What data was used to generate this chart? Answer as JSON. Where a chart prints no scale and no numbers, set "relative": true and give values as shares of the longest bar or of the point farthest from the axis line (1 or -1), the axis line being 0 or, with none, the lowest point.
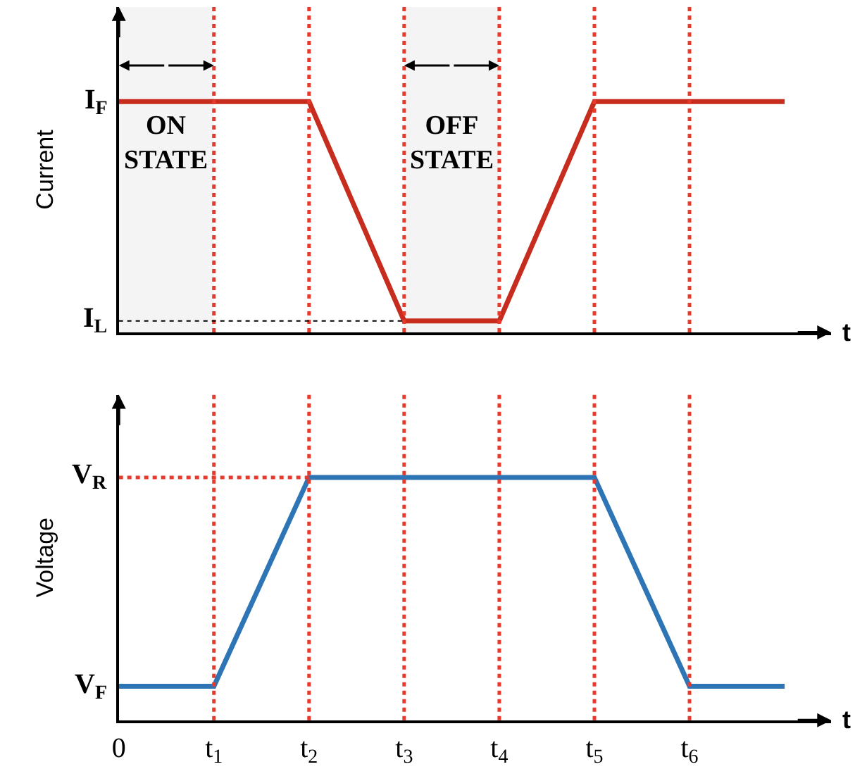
{
  "chart_data": [
    {
      "type": "line",
      "ylabel": "Current",
      "xlabel": "t",
      "relative": true,
      "categories": [
        "0",
        "t$_{1}$",
        "t$_{2}$",
        "t$_{3}$",
        "t$_{4}$",
        "t$_{5}$",
        "t$_{6}$",
        null
      ],
      "tick_labels": false,
      "grid": false,
      "legend": false,
      "line_style": "solid",
      "marker": "none",
      "series": [
        {
          "color": "#c62d1f",
          "values": [
            1,
            1,
            1,
            0.05,
            0.05,
            1,
            1,
            1
          ]
        }
      ],
      "ref_lines": [
        {
          "axis": "x",
          "value": "t$_{1}$",
          "color": "#e8392b",
          "line_style": "dotted"
        },
        {
          "axis": "x",
          "value": "t$_{2}$",
          "color": "#e8392b",
          "line_style": "dotted"
        },
        {
          "axis": "x",
          "value": "t$_{3}$",
          "color": "#e8392b",
          "line_style": "dotted"
        },
        {
          "axis": "x",
          "value": "t$_{4}$",
          "color": "#e8392b",
          "line_style": "dotted"
        },
        {
          "axis": "x",
          "value": "t$_{5}$",
          "color": "#e8392b",
          "line_style": "dotted"
        },
        {
          "axis": "x",
          "value": "t$_{6}$",
          "color": "#e8392b",
          "line_style": "dotted"
        },
        {
          "axis": "y",
          "value": 0.05,
          "label": "I$_{L}$",
          "color": "#000000",
          "line_style": "dotted"
        }
      ],
      "bands": [
        {
          "axis": "x",
          "from": "0",
          "to": "t$_{1}$",
          "label": "ON\nSTATE",
          "color": "#f4f4f4"
        },
        {
          "axis": "x",
          "from": "t$_{3}$",
          "to": "t$_{4}$",
          "label": "OFF\nSTATE",
          "color": "#f4f4f4"
        }
      ],
      "annotations": [
        {
          "text": "I$_{F}$",
          "x": "0",
          "y": 1
        }
      ]
    },
    {
      "type": "line",
      "ylabel": "Voltage",
      "xlabel": "t",
      "relative": true,
      "categories": [
        "0",
        "t$_{1}$",
        "t$_{2}$",
        "t$_{3}$",
        "t$_{4}$",
        "t$_{5}$",
        "t$_{6}$",
        null
      ],
      "tick_labels": "x",
      "grid": false,
      "legend": false,
      "line_style": "solid",
      "marker": "none",
      "series": [
        {
          "color": "#2e75b6",
          "values": [
            0.14,
            0.14,
            1,
            1,
            1,
            1,
            0.14,
            0.14
          ]
        }
      ],
      "ref_lines": [
        {
          "axis": "x",
          "value": "t$_{1}$",
          "color": "#e8392b",
          "line_style": "dotted"
        },
        {
          "axis": "x",
          "value": "t$_{2}$",
          "color": "#e8392b",
          "line_style": "dotted"
        },
        {
          "axis": "x",
          "value": "t$_{3}$",
          "color": "#e8392b",
          "line_style": "dotted"
        },
        {
          "axis": "x",
          "value": "t$_{4}$",
          "color": "#e8392b",
          "line_style": "dotted"
        },
        {
          "axis": "x",
          "value": "t$_{5}$",
          "color": "#e8392b",
          "line_style": "dotted"
        },
        {
          "axis": "x",
          "value": "t$_{6}$",
          "color": "#e8392b",
          "line_style": "dotted"
        },
        {
          "axis": "y",
          "value": 1,
          "label": "V$_{R}$",
          "color": "#e8392b",
          "line_style": "dotted"
        }
      ],
      "annotations": [
        {
          "text": "V$_{F}$",
          "x": "0",
          "y": 0.14
        }
      ]
    }
  ]
}
